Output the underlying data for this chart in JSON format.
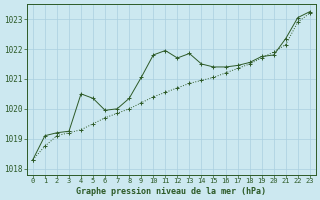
{
  "title": "Graphe pression niveau de la mer (hPa)",
  "background_color": "#cce8f0",
  "grid_color": "#aacfdf",
  "line_color": "#2d5a27",
  "x_ticks": [
    0,
    1,
    2,
    3,
    4,
    5,
    6,
    7,
    8,
    9,
    10,
    11,
    12,
    13,
    14,
    15,
    16,
    17,
    18,
    19,
    20,
    21,
    22,
    23
  ],
  "ylim": [
    1017.8,
    1023.5
  ],
  "yticks": [
    1018,
    1019,
    1020,
    1021,
    1022,
    1023
  ],
  "series1_x": [
    0,
    1,
    2,
    3,
    4,
    5,
    6,
    7,
    8,
    9,
    10,
    11,
    12,
    13,
    14,
    15,
    16,
    17,
    18,
    19,
    20,
    21,
    22,
    23
  ],
  "series1_y": [
    1018.3,
    1018.75,
    1019.1,
    1019.2,
    1019.3,
    1019.5,
    1019.7,
    1019.85,
    1020.0,
    1020.2,
    1020.4,
    1020.55,
    1020.7,
    1020.85,
    1020.95,
    1021.05,
    1021.2,
    1021.35,
    1021.5,
    1021.7,
    1021.9,
    1022.15,
    1022.9,
    1023.2
  ],
  "series2_x": [
    0,
    1,
    2,
    3,
    4,
    5,
    6,
    7,
    8,
    9,
    10,
    11,
    12,
    13,
    14,
    15,
    16,
    17,
    18,
    19,
    20,
    21,
    22,
    23
  ],
  "series2_y": [
    1018.3,
    1019.1,
    1019.2,
    1019.25,
    1020.5,
    1020.35,
    1019.95,
    1020.0,
    1020.35,
    1021.05,
    1021.8,
    1021.95,
    1021.7,
    1021.85,
    1021.5,
    1021.4,
    1021.4,
    1021.45,
    1021.55,
    1021.75,
    1021.8,
    1022.35,
    1023.05,
    1023.25
  ],
  "ylabel_fontsize": 5.5,
  "xlabel_fontsize": 6.0
}
